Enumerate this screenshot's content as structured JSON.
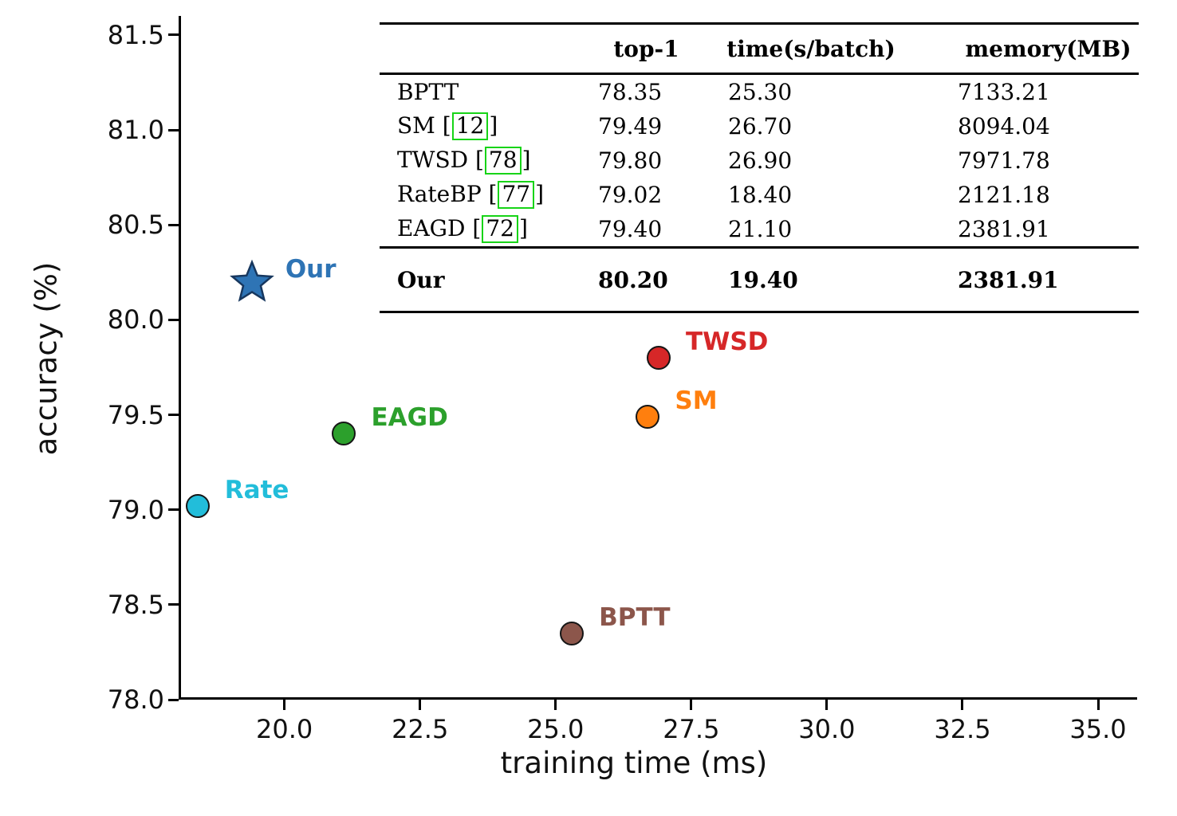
{
  "chart_data": {
    "type": "scatter",
    "title": "",
    "xlabel": "training time (ms)",
    "ylabel": "accuracy (%)",
    "xlim": [
      18.05,
      35.72
    ],
    "ylim": [
      78.0,
      81.6
    ],
    "xticks": [
      20.0,
      22.5,
      25.0,
      27.5,
      30.0,
      32.5,
      35.0
    ],
    "yticks": [
      78.0,
      78.5,
      79.0,
      79.5,
      80.0,
      80.5,
      81.0,
      81.5
    ],
    "grid": false,
    "legend": "none",
    "points": [
      {
        "label": "Our",
        "x": 19.4,
        "y": 80.2,
        "marker": "star",
        "color": "#2e74b5",
        "edge": "#17375e",
        "label_dx": 42,
        "label_dy": -34
      },
      {
        "label": "TWSD",
        "x": 26.9,
        "y": 79.8,
        "marker": "circle",
        "color": "#d62728"
      },
      {
        "label": "SM",
        "x": 26.7,
        "y": 79.49,
        "marker": "circle",
        "color": "#ff7f0e"
      },
      {
        "label": "EAGD",
        "x": 21.1,
        "y": 79.4,
        "marker": "circle",
        "color": "#2ca02c"
      },
      {
        "label": "Rate",
        "x": 18.4,
        "y": 79.02,
        "marker": "circle",
        "color": "#22bdda"
      },
      {
        "label": "BPTT",
        "x": 25.3,
        "y": 78.35,
        "marker": "circle",
        "color": "#8c564b"
      }
    ]
  },
  "table": {
    "headers": [
      "",
      "top-1",
      "time(s/batch)",
      "memory(MB)"
    ],
    "rows": [
      {
        "name": "BPTT",
        "cite": null,
        "top1": "78.35",
        "time": "25.30",
        "memory": "7133.21"
      },
      {
        "name": "SM",
        "cite": "12",
        "top1": "79.49",
        "time": "26.70",
        "memory": "8094.04"
      },
      {
        "name": "TWSD",
        "cite": "78",
        "top1": "79.80",
        "time": "26.90",
        "memory": "7971.78"
      },
      {
        "name": "RateBP",
        "cite": "77",
        "top1": "79.02",
        "time": "18.40",
        "memory": "2121.18"
      },
      {
        "name": "EAGD",
        "cite": "72",
        "top1": "79.40",
        "time": "21.10",
        "memory": "2381.91"
      }
    ],
    "our_row": {
      "name": "Our",
      "cite": null,
      "top1": "80.20",
      "time": "19.40",
      "memory": "2381.91"
    },
    "cite_box_color": "#17d417"
  }
}
